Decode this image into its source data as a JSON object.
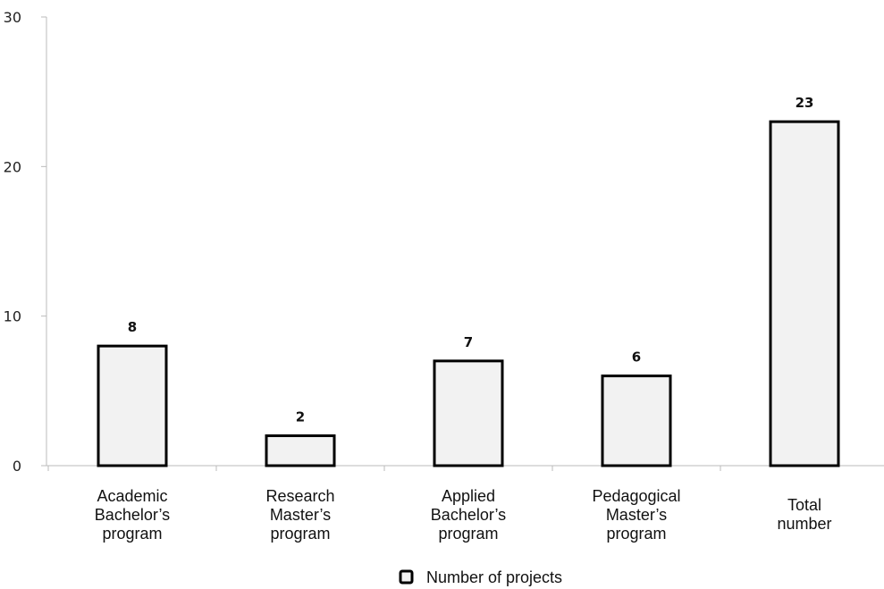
{
  "chart_data": {
    "type": "bar",
    "categories": [
      [
        "Academic",
        "Bachelor’s",
        "program"
      ],
      [
        "Research",
        "Master’s",
        "program"
      ],
      [
        "Applied",
        "Bachelor’s",
        "program"
      ],
      [
        "Pedagogical",
        "Master’s",
        "program"
      ],
      [
        "Total",
        "number"
      ]
    ],
    "series": [
      {
        "name": "Number of projects",
        "values": [
          8,
          2,
          7,
          6,
          23
        ]
      }
    ],
    "data_labels": [
      "8",
      "2",
      "7",
      "6",
      "23"
    ],
    "y_ticks": [
      0,
      10,
      20,
      30
    ],
    "ylim": [
      0,
      30
    ],
    "grid": false,
    "legend_position": "bottom-center",
    "colors": {
      "bar_fill": "#f2f2f2",
      "bar_stroke": "#000000",
      "axis": "#bbbbbb"
    }
  }
}
